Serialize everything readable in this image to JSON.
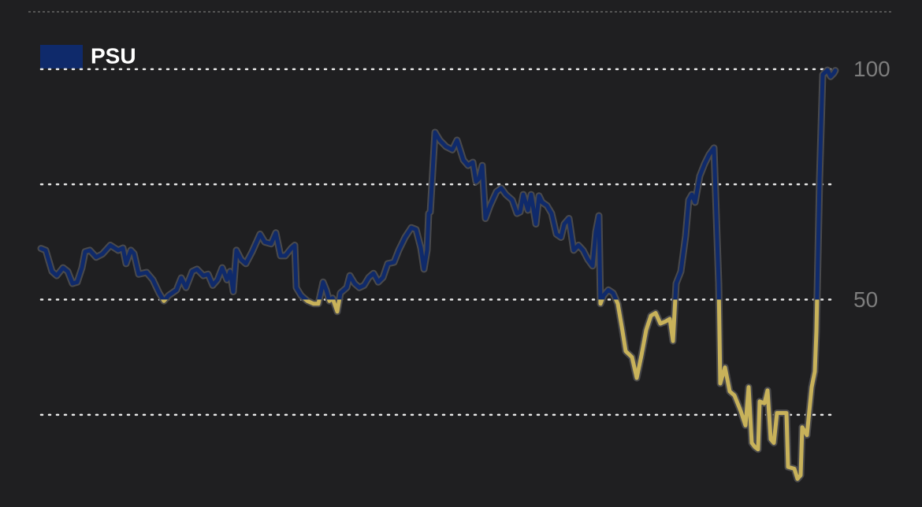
{
  "chart_data": {
    "type": "line",
    "x": [
      0,
      6,
      14,
      20,
      28,
      34,
      40,
      46,
      52,
      56,
      62,
      70,
      78,
      88,
      98,
      104,
      108,
      114,
      118,
      124,
      134,
      142,
      150,
      156,
      162,
      172,
      178,
      184,
      192,
      198,
      206,
      212,
      218,
      224,
      230,
      236,
      240,
      244,
      248,
      254,
      260,
      268,
      278,
      284,
      292,
      298,
      304,
      310,
      318,
      322,
      324,
      330,
      338,
      346,
      352,
      358,
      362,
      366,
      370,
      376,
      380,
      388,
      392,
      398,
      404,
      410,
      416,
      422,
      428,
      434,
      440,
      448,
      454,
      462,
      470,
      476,
      482,
      486,
      490,
      492,
      494,
      500,
      506,
      514,
      522,
      528,
      536,
      542,
      548,
      552,
      556,
      560,
      564,
      570,
      578,
      584,
      590,
      598,
      604,
      608,
      612,
      618,
      622,
      628,
      632,
      636,
      642,
      648,
      654,
      660,
      664,
      670,
      676,
      682,
      688,
      694,
      700,
      704,
      708,
      710,
      714,
      720,
      726,
      732,
      738,
      742,
      750,
      756,
      762,
      768,
      774,
      780,
      786,
      792,
      798,
      802,
      806,
      812,
      818,
      822,
      826,
      830,
      836,
      842,
      848,
      854,
      860,
      862,
      868,
      874,
      880,
      888,
      894,
      898,
      902,
      906,
      910,
      912,
      918,
      922,
      926,
      930,
      934,
      940,
      946,
      948,
      956,
      960,
      964,
      966,
      972,
      978,
      982,
      984,
      988,
      992,
      998,
      1002,
      1006,
      1008
    ],
    "series": [
      {
        "name": "PSU",
        "color": "#0f2a6b",
        "color_below": "#c8b25a",
        "values": [
          61.1,
          60.7,
          56.1,
          55.2,
          56.9,
          56.1,
          53.5,
          53.8,
          56.9,
          60.4,
          60.7,
          59.2,
          59.9,
          61.8,
          60.7,
          61.2,
          57.8,
          60.7,
          60.0,
          55.5,
          55.9,
          54.3,
          51.4,
          49.7,
          50.9,
          52.1,
          54.7,
          52.6,
          56.1,
          56.6,
          55.2,
          55.5,
          53.1,
          54.3,
          56.9,
          54.3,
          56.1,
          51.7,
          60.7,
          58.7,
          57.8,
          60.4,
          64.2,
          62.5,
          62.1,
          64.5,
          59.5,
          59.5,
          61.2,
          61.8,
          52.6,
          50.9,
          49.7,
          49.1,
          49.1,
          53.8,
          52.1,
          49.7,
          50.3,
          47.4,
          51.4,
          52.6,
          55.2,
          53.5,
          52.6,
          53.1,
          54.8,
          55.7,
          53.8,
          54.8,
          57.8,
          58.1,
          60.7,
          63.5,
          65.6,
          65.2,
          61.2,
          56.6,
          60.7,
          68.7,
          69.0,
          86.3,
          84.6,
          83.2,
          82.5,
          84.6,
          80.3,
          79.1,
          79.8,
          75.6,
          76.3,
          79.1,
          67.6,
          70.4,
          73.4,
          74.2,
          72.8,
          71.6,
          68.7,
          69.0,
          72.8,
          69.4,
          72.8,
          66.4,
          72.5,
          71.1,
          70.4,
          68.7,
          64.2,
          63.5,
          66.4,
          67.6,
          60.7,
          61.8,
          60.7,
          58.7,
          57.3,
          64.7,
          68.2,
          49.1,
          50.9,
          52.1,
          51.4,
          49.1,
          43.1,
          38.8,
          37.5,
          33.0,
          37.9,
          43.4,
          46.5,
          47.1,
          44.8,
          45.2,
          45.8,
          41.0,
          53.5,
          56.1,
          63.8,
          71.6,
          72.8,
          71.1,
          76.8,
          79.4,
          81.5,
          82.9,
          53.5,
          31.8,
          35.3,
          30.1,
          29.2,
          25.8,
          22.7,
          31.0,
          18.9,
          18.0,
          17.5,
          27.9,
          27.5,
          30.3,
          19.7,
          18.9,
          25.4,
          25.4,
          25.4,
          13.7,
          13.3,
          11.1,
          11.9,
          22.3,
          20.6,
          31.0,
          34.4,
          43.1,
          76.0,
          98.8,
          99.8,
          98.4,
          99.1,
          99.7
        ]
      }
    ],
    "split_at": 50,
    "xlim": [
      0,
      1008
    ],
    "ylim": [
      5,
      115
    ],
    "yticks": [
      50,
      100
    ],
    "grid_lines": [
      25,
      50,
      75,
      100
    ],
    "grid": true
  }
}
